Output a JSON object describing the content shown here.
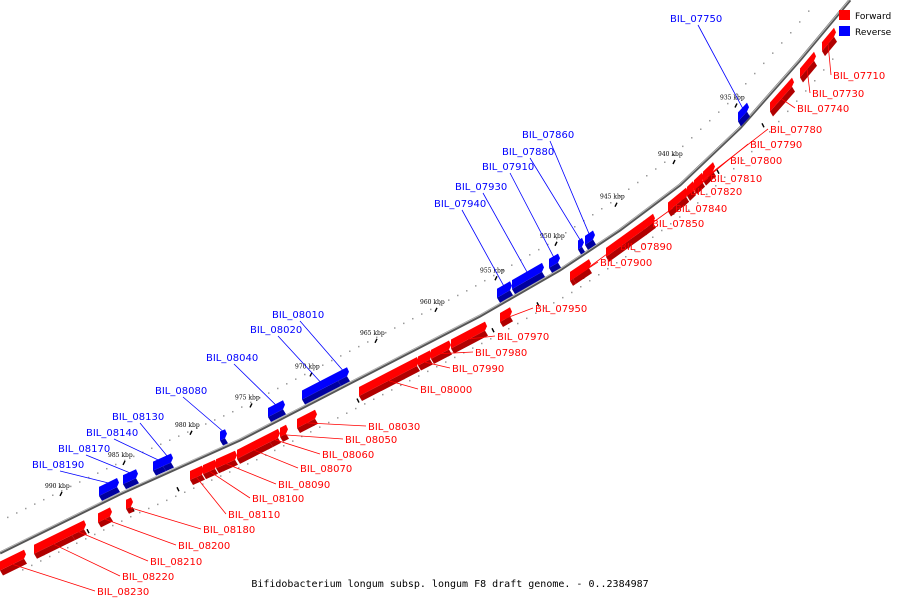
{
  "legend": {
    "forward_label": "Forward",
    "reverse_label": "Reverse",
    "forward_color": "#ff0000",
    "reverse_color": "#0000ff"
  },
  "caption": "Bifidobacterium longum subsp. longum F8 draft genome. - 0..2384987",
  "kbp_ticks": [
    "935 kbp",
    "940 kbp",
    "945 kbp",
    "950 kbp",
    "955 kbp",
    "960 kbp",
    "965 kbp",
    "970 kbp",
    "975 kbp",
    "980 kbp",
    "985 kbp",
    "990 kbp"
  ],
  "reverse_genes": [
    "BIL_07750",
    "BIL_07860",
    "BIL_07880",
    "BIL_07910",
    "BIL_07930",
    "BIL_07940",
    "BIL_08010",
    "BIL_08020",
    "BIL_08040",
    "BIL_08080",
    "BIL_08130",
    "BIL_08140",
    "BIL_08170",
    "BIL_08190"
  ],
  "forward_genes": [
    "BIL_07710",
    "BIL_07730",
    "BIL_07740",
    "BIL_07780",
    "BIL_07790",
    "BIL_07800",
    "BIL_07810",
    "BIL_07820",
    "BIL_07840",
    "BIL_07850",
    "BIL_07890",
    "BIL_07900",
    "BIL_07950",
    "BIL_07970",
    "BIL_07980",
    "BIL_07990",
    "BIL_08000",
    "BIL_08030",
    "BIL_08050",
    "BIL_08060",
    "BIL_08070",
    "BIL_08090",
    "BIL_08100",
    "BIL_08110",
    "BIL_08180",
    "BIL_08200",
    "BIL_08210",
    "BIL_08220",
    "BIL_08230"
  ]
}
